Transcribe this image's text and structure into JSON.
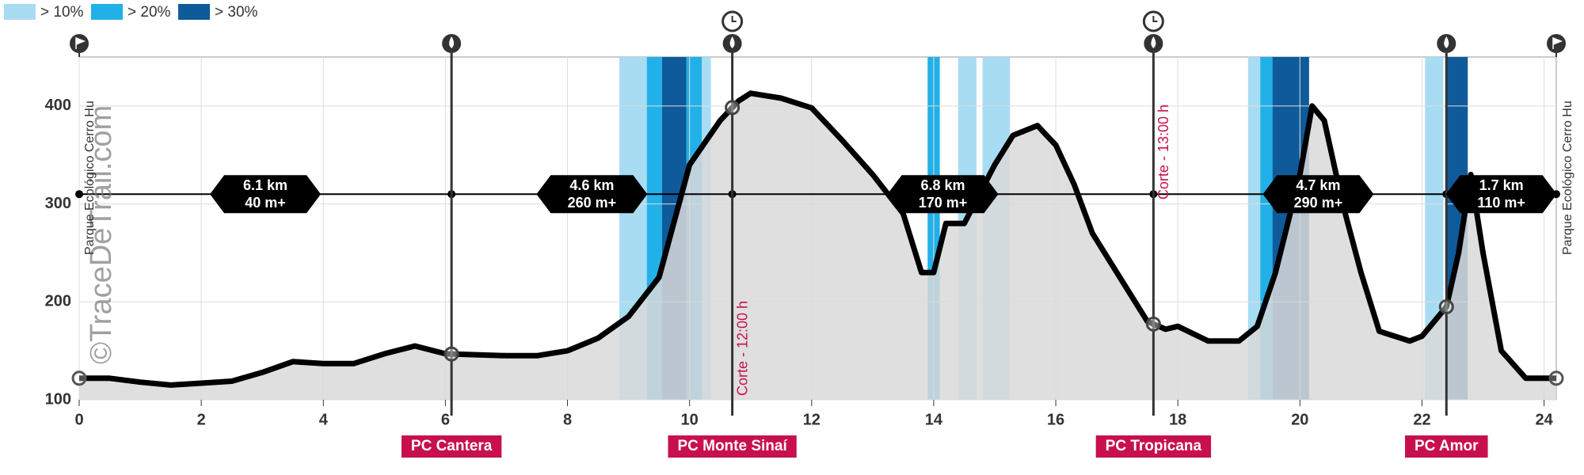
{
  "chart_data": {
    "type": "area",
    "x": [
      0,
      0.5,
      1,
      1.5,
      2,
      2.5,
      3,
      3.5,
      4,
      4.5,
      5,
      5.5,
      6,
      6.5,
      7,
      7.5,
      8,
      8.5,
      9,
      9.5,
      10,
      10.5,
      10.8,
      11,
      11.5,
      12,
      12.5,
      13,
      13.5,
      13.8,
      14,
      14.2,
      14.5,
      15,
      15.3,
      15.7,
      16,
      16.3,
      16.6,
      17,
      17.5,
      17.8,
      18,
      18.5,
      19,
      19.3,
      19.6,
      20,
      20.2,
      20.4,
      20.7,
      21,
      21.3,
      21.8,
      22,
      22.4,
      22.6,
      22.8,
      23,
      23.3,
      23.7,
      24.2
    ],
    "values": [
      122,
      122,
      118,
      115,
      117,
      119,
      128,
      139,
      137,
      137,
      147,
      155,
      147,
      146,
      145,
      145,
      150,
      163,
      185,
      225,
      340,
      385,
      405,
      413,
      408,
      398,
      365,
      330,
      290,
      230,
      230,
      280,
      280,
      340,
      370,
      380,
      360,
      320,
      270,
      230,
      180,
      172,
      175,
      160,
      160,
      175,
      230,
      330,
      400,
      385,
      300,
      230,
      170,
      160,
      165,
      195,
      250,
      330,
      250,
      150,
      122,
      122
    ],
    "line_color": "#000000",
    "fill_color": "#d9d9d9",
    "xlim": [
      0,
      24.2
    ],
    "ylim": [
      100,
      450
    ],
    "xticks": [
      0,
      2,
      4,
      6,
      8,
      10,
      12,
      14,
      16,
      18,
      20,
      22,
      24
    ],
    "yticks": [
      100,
      200,
      300,
      400
    ],
    "grid": true,
    "slope_legend": [
      {
        "label": "> 10%",
        "color": "#a8dcf3"
      },
      {
        "label": "> 20%",
        "color": "#22b0e8"
      },
      {
        "label": "> 30%",
        "color": "#0f5a9a"
      }
    ],
    "slope_bands": [
      {
        "start": 8.85,
        "end": 9.3,
        "level": 0
      },
      {
        "start": 9.3,
        "end": 9.55,
        "level": 1
      },
      {
        "start": 9.55,
        "end": 9.95,
        "level": 2
      },
      {
        "start": 9.95,
        "end": 10.2,
        "level": 1
      },
      {
        "start": 10.2,
        "end": 10.35,
        "level": 0
      },
      {
        "start": 13.9,
        "end": 14.1,
        "level": 1
      },
      {
        "start": 14.4,
        "end": 14.7,
        "level": 0
      },
      {
        "start": 14.8,
        "end": 15.25,
        "level": 0
      },
      {
        "start": 19.15,
        "end": 19.35,
        "level": 0
      },
      {
        "start": 19.35,
        "end": 19.55,
        "level": 1
      },
      {
        "start": 19.55,
        "end": 20.15,
        "level": 2
      },
      {
        "start": 22.05,
        "end": 22.35,
        "level": 0
      },
      {
        "start": 22.4,
        "end": 22.75,
        "level": 2
      }
    ],
    "checkpoints": [
      {
        "x": 6.1,
        "label": "PC Cantera"
      },
      {
        "x": 10.7,
        "label": "PC Monte Sinaí",
        "cutoff": "Corte - 12:00 h"
      },
      {
        "x": 17.6,
        "label": "PC Tropicana",
        "cutoff": "Corte - 13:00 h"
      },
      {
        "x": 22.4,
        "label": "PC Amor"
      }
    ],
    "segments": [
      {
        "distance": "6.1 km",
        "gain": "40 m+",
        "mid": 3.05
      },
      {
        "distance": "4.6 km",
        "gain": "260 m+",
        "mid": 8.4
      },
      {
        "distance": "6.8 km",
        "gain": "170 m+",
        "mid": 14.15
      },
      {
        "distance": "4.7 km",
        "gain": "290 m+",
        "mid": 20.3
      },
      {
        "distance": "1.7 km",
        "gain": "110 m+",
        "mid": 23.3
      }
    ],
    "start_label": "Parque Ecológico Cerro Hu",
    "end_label": "Parque Ecológico Cerro Hu",
    "watermark": "©TraceDeTrail.com"
  }
}
